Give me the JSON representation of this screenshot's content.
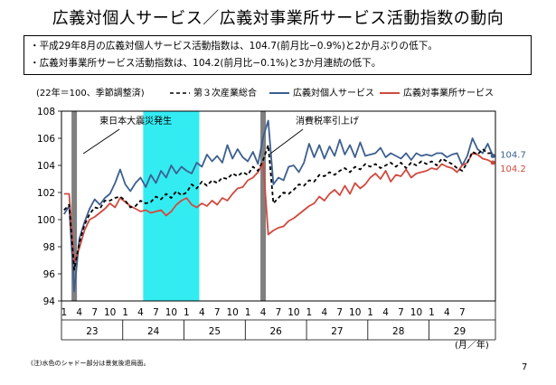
{
  "title": "広義対個人サービス／広義対事業所サービス活動指数の動向",
  "bullets": [
    "・平成29年8月の広義対個人サービス活動指数は、104.7(前月比−0.9%)と2か月ぶりの低下。",
    "・広義対事業所サービス活動指数は、104.2(前月比−0.1%)と3か月連続の低下。"
  ],
  "footnote": "(注)水色のシャドー部分は景気後退局面。",
  "page_number": "7",
  "chart_data": {
    "type": "line",
    "index_note": "(22年＝100、季節調整済)",
    "ylim": [
      94,
      108
    ],
    "y_ticks": [
      "94",
      "96",
      "98",
      "100",
      "102",
      "104",
      "106",
      "108"
    ],
    "x_month_labels": [
      "1",
      "4",
      "7",
      "10",
      "1",
      "4",
      "7",
      "10",
      "1",
      "4",
      "7",
      "10",
      "1",
      "4",
      "7",
      "10",
      "1",
      "4",
      "7",
      "10",
      "1",
      "4",
      "7",
      "10",
      "1",
      "4",
      "7"
    ],
    "x_year_labels": [
      "23",
      "24",
      "25",
      "26",
      "27",
      "28",
      "29"
    ],
    "x_unit_label": "(月／年)",
    "series": [
      {
        "name": "第３次産業総合",
        "color": "#000000",
        "dash": true,
        "values": [
          100.7,
          101.1,
          96.3,
          98.3,
          99.6,
          100.4,
          100.9,
          100.8,
          101.4,
          101.4,
          101.6,
          101.7,
          101.4,
          100.9,
          101.0,
          101.4,
          101.2,
          101.3,
          101.7,
          101.5,
          101.9,
          101.6,
          102.1,
          101.8,
          102.0,
          102.6,
          102.3,
          102.8,
          102.5,
          102.9,
          102.7,
          103.1,
          103.0,
          103.4,
          103.2,
          103.5,
          103.3,
          103.9,
          103.6,
          104.4,
          105.5,
          101.2,
          101.6,
          102.0,
          101.9,
          102.2,
          102.6,
          102.5,
          102.9,
          102.8,
          103.3,
          103.2,
          103.5,
          103.3,
          103.6,
          103.8,
          103.5,
          103.9,
          103.7,
          104.1,
          103.9,
          104.1,
          103.8,
          104.0,
          104.2,
          103.9,
          104.2,
          103.8,
          104.2,
          104.0,
          104.3,
          104.1,
          104.3,
          104.0,
          104.5,
          104.3,
          104.1,
          103.8,
          103.6,
          104.2,
          105.0,
          104.8,
          105.2,
          104.9,
          104.9
        ]
      },
      {
        "name": "広義対個人サービス",
        "color": "#3d5f8f",
        "dash": false,
        "values": [
          100.4,
          101.0,
          94.7,
          98.6,
          99.8,
          100.8,
          101.5,
          101.1,
          101.6,
          101.9,
          102.7,
          103.7,
          102.6,
          102.1,
          102.7,
          103.1,
          102.4,
          103.3,
          102.7,
          103.6,
          103.1,
          104.0,
          103.4,
          103.9,
          103.6,
          103.4,
          104.2,
          103.9,
          104.8,
          104.3,
          104.7,
          104.2,
          105.5,
          104.5,
          105.2,
          104.6,
          104.3,
          105.0,
          104.1,
          106.1,
          107.3,
          102.6,
          103.1,
          102.9,
          103.9,
          104.0,
          103.5,
          104.2,
          105.6,
          104.6,
          105.5,
          104.5,
          105.4,
          104.7,
          105.9,
          104.8,
          105.5,
          104.6,
          105.7,
          104.7,
          104.8,
          104.9,
          105.3,
          104.6,
          104.9,
          104.7,
          104.5,
          104.9,
          104.4,
          104.9,
          104.7,
          104.8,
          104.7,
          104.9,
          104.9,
          104.6,
          104.8,
          104.9,
          104.0,
          104.7,
          106.0,
          105.2,
          104.9,
          105.6,
          104.7
        ]
      },
      {
        "name": "広義対事業所サービス",
        "color": "#d04a3e",
        "dash": false,
        "values": [
          101.9,
          101.9,
          96.8,
          97.9,
          99.2,
          100.0,
          100.2,
          100.5,
          100.8,
          101.2,
          100.9,
          101.6,
          101.3,
          101.0,
          100.8,
          100.6,
          100.7,
          100.5,
          100.6,
          100.7,
          100.3,
          100.6,
          101.1,
          101.4,
          101.6,
          101.1,
          100.9,
          101.2,
          101.0,
          101.4,
          101.1,
          101.6,
          101.4,
          101.9,
          102.3,
          102.4,
          102.9,
          103.1,
          103.5,
          104.2,
          98.9,
          99.2,
          99.4,
          99.5,
          99.9,
          100.1,
          100.4,
          100.7,
          101.0,
          101.2,
          101.7,
          101.4,
          101.9,
          102.2,
          101.8,
          102.5,
          101.9,
          102.7,
          102.3,
          102.6,
          103.1,
          103.4,
          103.0,
          103.6,
          102.8,
          103.3,
          103.2,
          103.7,
          103.1,
          103.4,
          103.5,
          103.6,
          103.8,
          103.7,
          104.1,
          103.9,
          103.8,
          103.5,
          104.0,
          104.2,
          104.9,
          104.8,
          104.5,
          104.4,
          104.2
        ]
      }
    ],
    "end_labels": [
      "104.7",
      "104.2"
    ],
    "annotations": [
      {
        "text": "東日本大震災発生",
        "month_index": 2
      },
      {
        "text": "消費税率引上げ",
        "month_index": 39
      }
    ],
    "recession_shading": {
      "from_index": 16,
      "to_index": 26,
      "color": "#33ecf2"
    },
    "event_bars_color": "#808080"
  }
}
